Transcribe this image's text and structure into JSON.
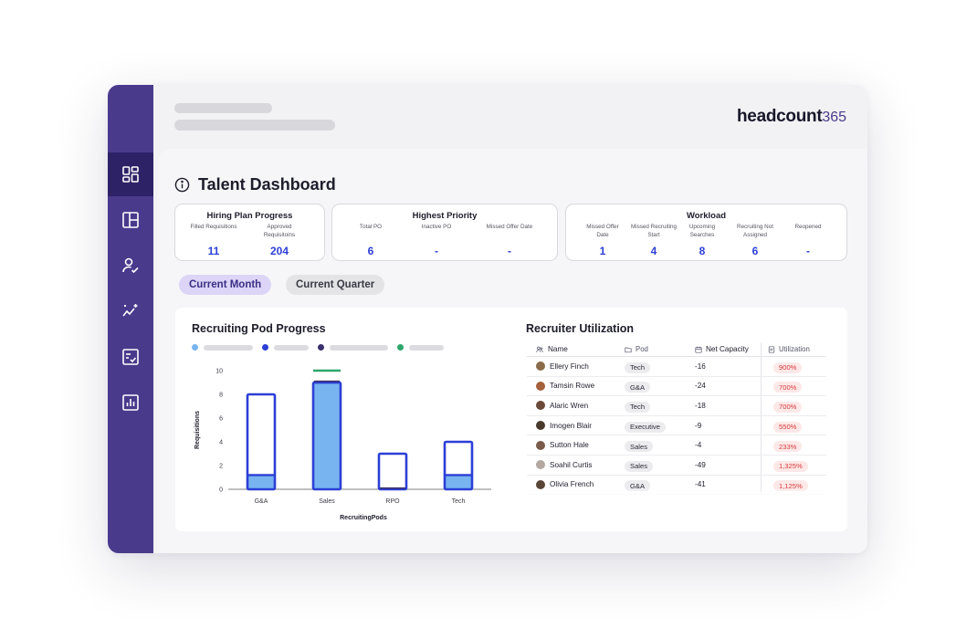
{
  "brand": {
    "name": "headcount",
    "suffix": "365"
  },
  "sidebar": {
    "items": [
      {
        "icon": "dashboard-icon",
        "active": true
      },
      {
        "icon": "layout-icon",
        "active": false
      },
      {
        "icon": "user-check-icon",
        "active": false
      },
      {
        "icon": "sparkle-trend-icon",
        "active": false
      },
      {
        "icon": "checklist-icon",
        "active": false
      },
      {
        "icon": "bar-chart-icon",
        "active": false
      }
    ],
    "color": "#4a3a8c",
    "active_color": "#2e2266"
  },
  "page": {
    "title": "Talent Dashboard",
    "title_icon": "info-icon"
  },
  "kpis": {
    "hiring_plan": {
      "title": "Hiring Plan Progress",
      "items": [
        {
          "label": "Filled Requisitions",
          "value": "11"
        },
        {
          "label": "Approved Requisitoins",
          "value": "204"
        }
      ]
    },
    "highest_priority": {
      "title": "Highest Priority",
      "items": [
        {
          "label": "Total PO",
          "value": "6"
        },
        {
          "label": "Inactive PO",
          "value": "-"
        },
        {
          "label": "Missed Offer Date",
          "value": "-"
        }
      ]
    },
    "workload": {
      "title": "Workload",
      "items": [
        {
          "label": "Missed Offer Date",
          "value": "1"
        },
        {
          "label": "Missed Recruiting Start",
          "value": "4"
        },
        {
          "label": "Upcoming Searches",
          "value": "8"
        },
        {
          "label": "Recruiting Not Assigned",
          "value": "6"
        },
        {
          "label": "Reopened",
          "value": "-"
        }
      ]
    }
  },
  "period_tabs": [
    {
      "label": "Current Month",
      "active": true
    },
    {
      "label": "Current Quarter",
      "active": false
    }
  ],
  "pod_progress": {
    "title": "Recruiting Pod Progress",
    "legend_colors": [
      "#78b4f0",
      "#2c3fd6",
      "#3b2f6e",
      "#2ca66a"
    ]
  },
  "chart_data": {
    "type": "bar",
    "title": "Recruiting Pod Progress",
    "categories": [
      "G&A",
      "Sales",
      "RPO",
      "Tech"
    ],
    "xlabel": "RecruitingPods",
    "ylabel": "Requisitions",
    "ylim": [
      0,
      10
    ],
    "yticks": [
      0,
      2,
      4,
      6,
      8,
      10
    ],
    "series": [
      {
        "values": [
          8,
          9,
          3,
          4
        ],
        "color": "#2c3fd6",
        "style": "outline"
      },
      {
        "values": [
          1.2,
          9,
          0,
          1.2
        ],
        "color": "#78b4f0",
        "style": "fill"
      },
      {
        "values": [
          0,
          9.1,
          0.1,
          0
        ],
        "color": "#3b2f6e",
        "style": "line"
      },
      {
        "values": [
          0,
          10,
          0,
          0
        ],
        "color": "#2ca66a",
        "style": "line"
      }
    ],
    "grid": false
  },
  "utilization": {
    "title": "Recruiter Utilization",
    "columns": [
      "Name",
      "Pod",
      "Net Capacity",
      "Utilization"
    ],
    "column_icons": [
      "people-icon",
      "folder-icon",
      "calendar-icon",
      "document-icon"
    ],
    "rows": [
      {
        "name": "Ellery Finch",
        "pod": "Tech",
        "net_capacity": "-16",
        "utilization": "900%",
        "avatar_color": "#8a6b4a"
      },
      {
        "name": "Tamsin Rowe",
        "pod": "G&A",
        "net_capacity": "-24",
        "utilization": "700%",
        "avatar_color": "#a5603c"
      },
      {
        "name": "Alaric Wren",
        "pod": "Tech",
        "net_capacity": "-18",
        "utilization": "700%",
        "avatar_color": "#6b4a3a"
      },
      {
        "name": "Imogen Blair",
        "pod": "Executive",
        "net_capacity": "-9",
        "utilization": "550%",
        "avatar_color": "#4a3a2e"
      },
      {
        "name": "Sutton Hale",
        "pod": "Sales",
        "net_capacity": "-4",
        "utilization": "233%",
        "avatar_color": "#7a5a48"
      },
      {
        "name": "Soahil Curtis",
        "pod": "Sales",
        "net_capacity": "-49",
        "utilization": "1,325%",
        "avatar_color": "#b3a7a0"
      },
      {
        "name": "Olivia French",
        "pod": "G&A",
        "net_capacity": "-41",
        "utilization": "1,125%",
        "avatar_color": "#5a4636"
      }
    ]
  }
}
